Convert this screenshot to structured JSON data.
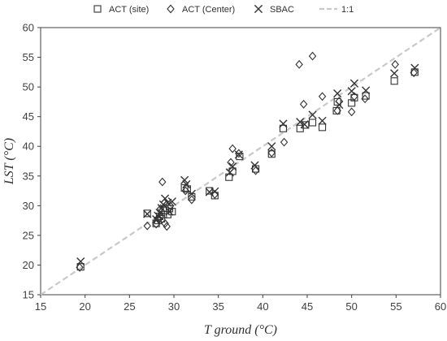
{
  "chart_data": {
    "type": "scatter",
    "title": "",
    "xlabel": "T ground (°C)",
    "ylabel": "LST (°C)",
    "xlim": [
      15,
      60
    ],
    "ylim": [
      15,
      60
    ],
    "xticks": [
      15,
      20,
      25,
      30,
      35,
      40,
      45,
      50,
      55,
      60
    ],
    "yticks": [
      15,
      20,
      25,
      30,
      35,
      40,
      45,
      50,
      55,
      60
    ],
    "grid": false,
    "legend_position": "top",
    "reference_line": {
      "name": "1:1",
      "from": [
        15,
        15
      ],
      "to": [
        60,
        60
      ],
      "style": "dashed",
      "color": "#c8c8c8"
    },
    "series": [
      {
        "name": "ACT (site)",
        "marker": "square",
        "color": "#333333",
        "points": [
          [
            19.5,
            19.7
          ],
          [
            27.0,
            28.7
          ],
          [
            28.0,
            27.0
          ],
          [
            28.2,
            27.5
          ],
          [
            28.4,
            28.2
          ],
          [
            28.6,
            27.8
          ],
          [
            28.8,
            28.5
          ],
          [
            29.0,
            29.2
          ],
          [
            29.3,
            28.5
          ],
          [
            29.5,
            29.5
          ],
          [
            29.8,
            29.0
          ],
          [
            31.2,
            33.0
          ],
          [
            31.5,
            32.8
          ],
          [
            32.0,
            31.5
          ],
          [
            34.0,
            32.5
          ],
          [
            34.6,
            31.7
          ],
          [
            36.2,
            34.8
          ],
          [
            36.6,
            35.8
          ],
          [
            37.4,
            38.3
          ],
          [
            39.2,
            36.2
          ],
          [
            41.0,
            38.7
          ],
          [
            42.3,
            43.0
          ],
          [
            44.2,
            43.0
          ],
          [
            44.8,
            43.6
          ],
          [
            45.6,
            44.0
          ],
          [
            46.7,
            43.2
          ],
          [
            48.3,
            46.0
          ],
          [
            48.4,
            47.5
          ],
          [
            50.0,
            47.3
          ],
          [
            50.3,
            48.2
          ],
          [
            51.6,
            48.5
          ],
          [
            54.8,
            51.0
          ],
          [
            57.1,
            52.5
          ]
        ]
      },
      {
        "name": "ACT (Center)",
        "marker": "diamond",
        "color": "#333333",
        "points": [
          [
            19.4,
            19.6
          ],
          [
            27.0,
            26.6
          ],
          [
            28.0,
            26.9
          ],
          [
            28.3,
            27.8
          ],
          [
            28.5,
            29.5
          ],
          [
            28.7,
            34.0
          ],
          [
            29.0,
            27.0
          ],
          [
            29.2,
            26.5
          ],
          [
            29.6,
            30.0
          ],
          [
            31.3,
            32.5
          ],
          [
            32.0,
            31.0
          ],
          [
            34.6,
            31.9
          ],
          [
            36.4,
            37.3
          ],
          [
            36.6,
            39.6
          ],
          [
            37.3,
            38.8
          ],
          [
            39.2,
            35.9
          ],
          [
            41.0,
            38.9
          ],
          [
            42.4,
            40.7
          ],
          [
            44.1,
            53.8
          ],
          [
            44.6,
            47.1
          ],
          [
            45.6,
            55.2
          ],
          [
            46.7,
            48.4
          ],
          [
            48.4,
            46.0
          ],
          [
            48.6,
            47.6
          ],
          [
            50.0,
            45.8
          ],
          [
            50.3,
            48.4
          ],
          [
            51.5,
            48.0
          ],
          [
            54.9,
            53.8
          ],
          [
            57.0,
            52.4
          ]
        ]
      },
      {
        "name": "SBAC",
        "marker": "x",
        "color": "#333333",
        "points": [
          [
            19.5,
            20.6
          ],
          [
            27.0,
            28.6
          ],
          [
            28.0,
            27.7
          ],
          [
            28.2,
            28.3
          ],
          [
            28.4,
            28.8
          ],
          [
            28.6,
            29.6
          ],
          [
            28.8,
            30.2
          ],
          [
            29.0,
            31.2
          ],
          [
            29.3,
            30.5
          ],
          [
            29.5,
            29.0
          ],
          [
            29.8,
            30.7
          ],
          [
            31.2,
            34.3
          ],
          [
            31.4,
            33.6
          ],
          [
            32.0,
            32.0
          ],
          [
            34.0,
            32.3
          ],
          [
            34.6,
            32.4
          ],
          [
            36.3,
            35.6
          ],
          [
            36.6,
            36.6
          ],
          [
            37.3,
            38.6
          ],
          [
            39.1,
            36.8
          ],
          [
            41.0,
            40.0
          ],
          [
            42.3,
            43.8
          ],
          [
            44.2,
            44.1
          ],
          [
            44.7,
            43.7
          ],
          [
            45.6,
            45.3
          ],
          [
            46.7,
            44.3
          ],
          [
            48.4,
            48.9
          ],
          [
            48.6,
            47.0
          ],
          [
            50.0,
            49.3
          ],
          [
            50.3,
            50.6
          ],
          [
            51.6,
            49.4
          ],
          [
            54.8,
            52.3
          ],
          [
            57.1,
            53.2
          ]
        ]
      }
    ]
  }
}
